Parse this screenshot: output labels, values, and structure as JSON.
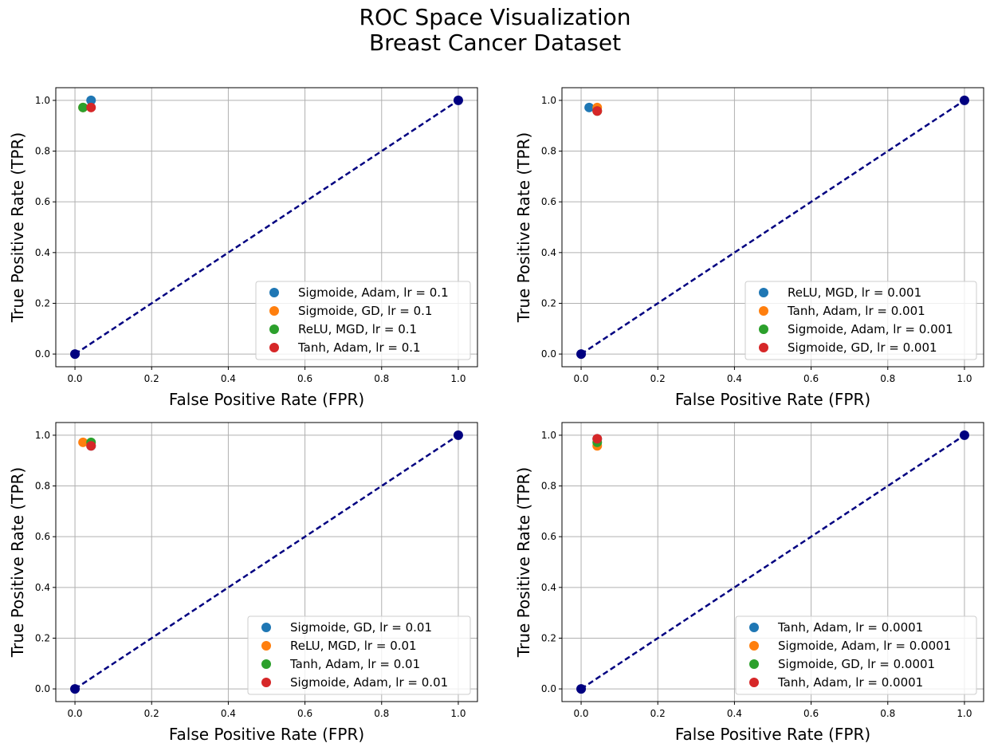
{
  "figure": {
    "title_line1": "ROC Space Visualization",
    "title_line2": "Breast Cancer Dataset"
  },
  "colors": {
    "blue": "#1f77b4",
    "orange": "#ff7f0e",
    "green": "#2ca02c",
    "red": "#d62728",
    "diagonal": "#000080",
    "grid": "#b0b0b0"
  },
  "chart_data": [
    {
      "type": "scatter",
      "xlabel": "False Positive Rate (FPR)",
      "ylabel": "True Positive Rate (TPR)",
      "xlim": [
        -0.05,
        1.05
      ],
      "ylim": [
        -0.05,
        1.05
      ],
      "xticks": [
        "0.0",
        "0.2",
        "0.4",
        "0.6",
        "0.8",
        "1.0"
      ],
      "yticks": [
        "0.0",
        "0.2",
        "0.4",
        "0.6",
        "0.8",
        "1.0"
      ],
      "grid": true,
      "legend_position": "lower-right",
      "diagonal": {
        "x": [
          0,
          1
        ],
        "y": [
          0,
          1
        ],
        "style": "dashed"
      },
      "series": [
        {
          "name": "Sigmoide, Adam, lr = 0.1",
          "x": 0.042,
          "y": 1.0
        },
        {
          "name": "Sigmoide, GD, lr = 0.1",
          "x": 0.021,
          "y": 0.972
        },
        {
          "name": "ReLU, MGD, lr = 0.1",
          "x": 0.021,
          "y": 0.972
        },
        {
          "name": "Tanh, Adam, lr = 0.1",
          "x": 0.042,
          "y": 0.972
        }
      ]
    },
    {
      "type": "scatter",
      "xlabel": "False Positive Rate (FPR)",
      "ylabel": "True Positive Rate (TPR)",
      "xlim": [
        -0.05,
        1.05
      ],
      "ylim": [
        -0.05,
        1.05
      ],
      "xticks": [
        "0.0",
        "0.2",
        "0.4",
        "0.6",
        "0.8",
        "1.0"
      ],
      "yticks": [
        "0.0",
        "0.2",
        "0.4",
        "0.6",
        "0.8",
        "1.0"
      ],
      "grid": true,
      "legend_position": "lower-right",
      "diagonal": {
        "x": [
          0,
          1
        ],
        "y": [
          0,
          1
        ],
        "style": "dashed"
      },
      "series": [
        {
          "name": "ReLU, MGD, lr = 0.001",
          "x": 0.021,
          "y": 0.972
        },
        {
          "name": "Tanh, Adam, lr = 0.001",
          "x": 0.042,
          "y": 0.972
        },
        {
          "name": "Sigmoide, Adam, lr = 0.001",
          "x": 0.042,
          "y": 0.958
        },
        {
          "name": "Sigmoide, GD, lr = 0.001",
          "x": 0.042,
          "y": 0.958
        }
      ]
    },
    {
      "type": "scatter",
      "xlabel": "False Positive Rate (FPR)",
      "ylabel": "True Positive Rate (TPR)",
      "xlim": [
        -0.05,
        1.05
      ],
      "ylim": [
        -0.05,
        1.05
      ],
      "xticks": [
        "0.0",
        "0.2",
        "0.4",
        "0.6",
        "0.8",
        "1.0"
      ],
      "yticks": [
        "0.0",
        "0.2",
        "0.4",
        "0.6",
        "0.8",
        "1.0"
      ],
      "grid": true,
      "legend_position": "lower-right",
      "diagonal": {
        "x": [
          0,
          1
        ],
        "y": [
          0,
          1
        ],
        "style": "dashed"
      },
      "series": [
        {
          "name": "Sigmoide, GD, lr = 0.01",
          "x": 0.042,
          "y": 0.958
        },
        {
          "name": "ReLU, MGD, lr = 0.01",
          "x": 0.021,
          "y": 0.972
        },
        {
          "name": "Tanh, Adam, lr = 0.01",
          "x": 0.042,
          "y": 0.972
        },
        {
          "name": "Sigmoide, Adam, lr = 0.01",
          "x": 0.042,
          "y": 0.958
        }
      ]
    },
    {
      "type": "scatter",
      "xlabel": "False Positive Rate (FPR)",
      "ylabel": "True Positive Rate (TPR)",
      "xlim": [
        -0.05,
        1.05
      ],
      "ylim": [
        -0.05,
        1.05
      ],
      "xticks": [
        "0.0",
        "0.2",
        "0.4",
        "0.6",
        "0.8",
        "1.0"
      ],
      "yticks": [
        "0.0",
        "0.2",
        "0.4",
        "0.6",
        "0.8",
        "1.0"
      ],
      "grid": true,
      "legend_position": "lower-right",
      "diagonal": {
        "x": [
          0,
          1
        ],
        "y": [
          0,
          1
        ],
        "style": "dashed"
      },
      "series": [
        {
          "name": "Tanh, Adam, lr = 0.0001",
          "x": 0.042,
          "y": 0.986
        },
        {
          "name": "Sigmoide, Adam, lr = 0.0001",
          "x": 0.042,
          "y": 0.958
        },
        {
          "name": "Sigmoide, GD, lr = 0.0001",
          "x": 0.042,
          "y": 0.972
        },
        {
          "name": "Tanh, Adam, lr = 0.0001",
          "x": 0.042,
          "y": 0.986
        }
      ]
    }
  ]
}
